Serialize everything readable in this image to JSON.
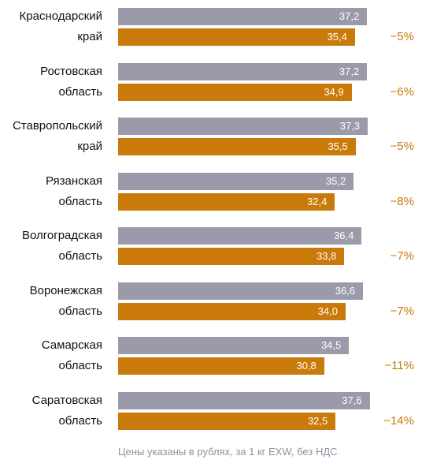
{
  "colors": {
    "series_prev": "#9a9aaa",
    "series_curr": "#c97a0a"
  },
  "footnote": "Цены указаны в рублях, за 1 кг EXW, без НДС",
  "chart_data": {
    "type": "bar",
    "orientation": "horizontal",
    "title": "",
    "xlim": [
      0,
      40
    ],
    "grid": false,
    "legend": "none",
    "categories": [
      [
        "Краснодарский",
        "край"
      ],
      [
        "Ростовская",
        "область"
      ],
      [
        "Ставропольский",
        "край"
      ],
      [
        "Рязанская",
        "область"
      ],
      [
        "Волгоградская",
        "область"
      ],
      [
        "Воронежская",
        "область"
      ],
      [
        "Самарская",
        "область"
      ],
      [
        "Саратовская",
        "область"
      ]
    ],
    "series": [
      {
        "values": [
          37.2,
          37.2,
          37.3,
          35.2,
          36.4,
          36.6,
          34.5,
          37.6
        ],
        "labels": [
          "37,2",
          "37,2",
          "37,3",
          "35,2",
          "36,4",
          "36,6",
          "34,5",
          "37,6"
        ]
      },
      {
        "values": [
          35.4,
          34.9,
          35.5,
          32.4,
          33.8,
          34.0,
          30.8,
          32.5
        ],
        "labels": [
          "35,4",
          "34,9",
          "35,5",
          "32,4",
          "33,8",
          "34,0",
          "30,8",
          "32,5"
        ]
      }
    ],
    "changes": [
      "−5%",
      "−6%",
      "−5%",
      "−8%",
      "−7%",
      "−7%",
      "−11%",
      "−14%"
    ]
  }
}
